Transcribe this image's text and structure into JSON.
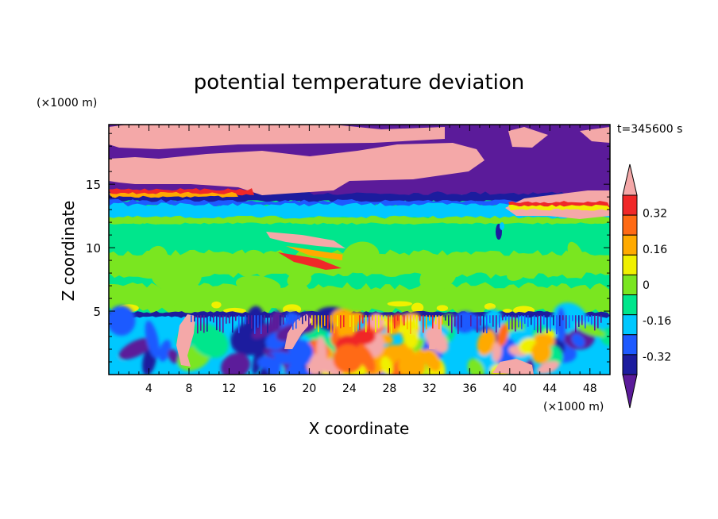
{
  "chart_data": {
    "type": "heatmap",
    "title": "potential temperature deviation",
    "xlabel": "X coordinate",
    "ylabel": "Z coordinate",
    "x_unit": "(×1000 m)",
    "y_unit": "(×1000 m)",
    "time_label": "t=345600 s",
    "xlim": [
      0,
      50
    ],
    "ylim": [
      0,
      19.7
    ],
    "x_ticks": [
      4,
      8,
      12,
      16,
      20,
      24,
      28,
      32,
      36,
      40,
      44,
      48
    ],
    "y_ticks": [
      5,
      10,
      15
    ],
    "colorbar": {
      "levels": [
        -0.4,
        -0.32,
        -0.24,
        -0.16,
        -0.08,
        0,
        0.08,
        0.16,
        0.24,
        0.32,
        0.4
      ],
      "labels": [
        "0.32",
        "0.16",
        "0",
        "-0.16",
        "-0.32"
      ],
      "label_values": [
        0.32,
        0.16,
        0,
        -0.16,
        -0.32
      ],
      "colors": [
        "#5B1B9A",
        "#1C1C9E",
        "#1E5AFF",
        "#00C8FF",
        "#00E68C",
        "#7AE620",
        "#F0F000",
        "#FFAA00",
        "#FF6A14",
        "#F02828",
        "#F4A8A8"
      ],
      "extend": "both"
    },
    "layers": [
      {
        "z": [
          0,
          4.8
        ],
        "description_level": "mixed",
        "level_range": [
          -0.4,
          0.4
        ]
      },
      {
        "z": [
          4.8,
          12.5
        ],
        "level": 0
      },
      {
        "z": [
          12.5,
          14
        ],
        "level": -0.16
      },
      {
        "z": [
          14,
          19.7
        ],
        "level": "mixed",
        "level_range": [
          -0.4,
          0.4
        ]
      }
    ]
  }
}
